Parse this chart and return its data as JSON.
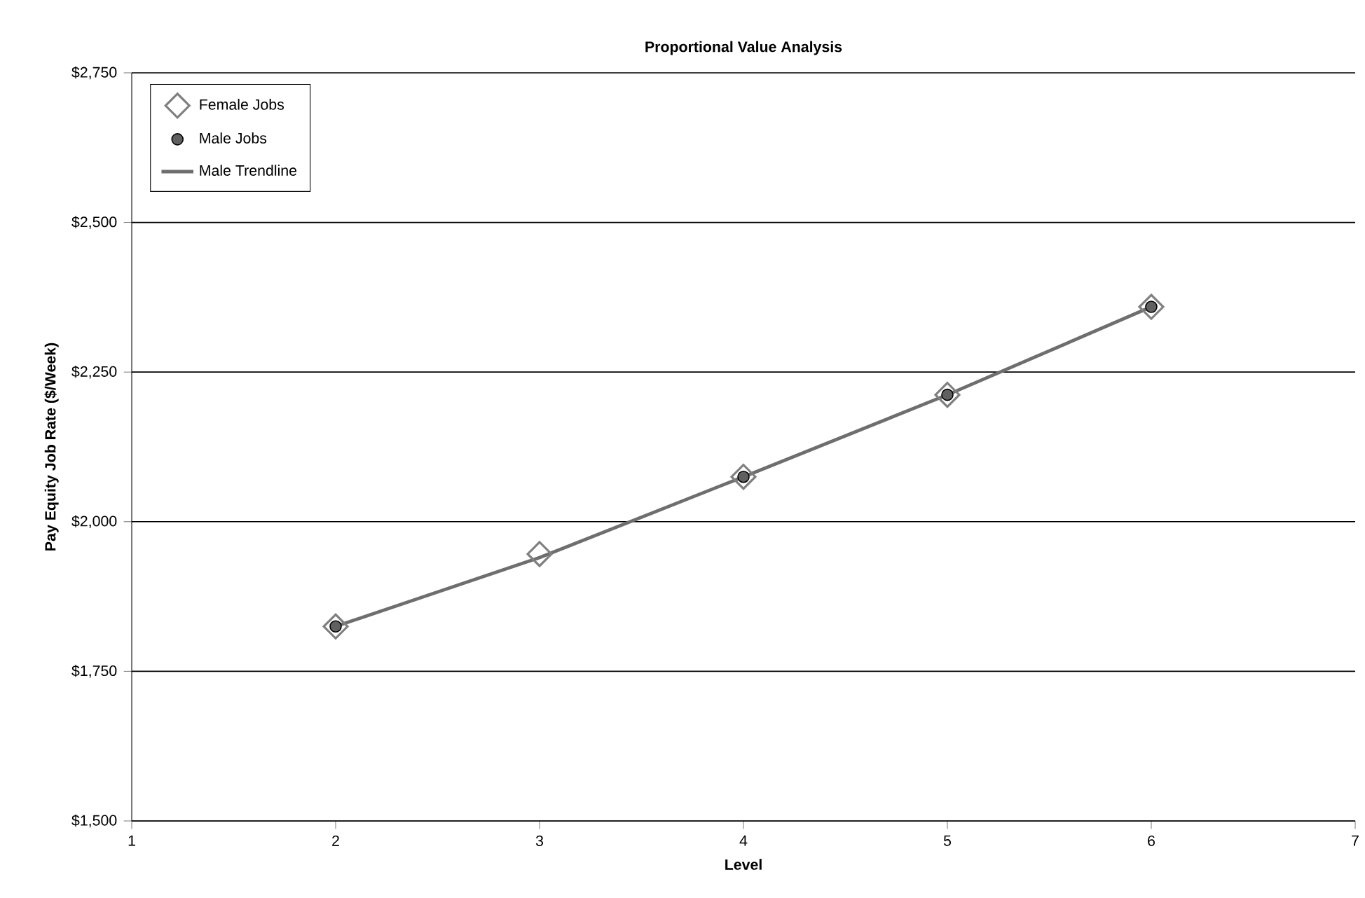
{
  "chart_data": {
    "type": "scatter",
    "title": "Proportional Value Analysis",
    "xlabel": "Level",
    "ylabel": "Pay Equity Job Rate ($/Week)",
    "xlim": [
      1,
      7
    ],
    "xticks": [
      1,
      2,
      3,
      4,
      5,
      6,
      7
    ],
    "ylim": [
      1500,
      2750
    ],
    "yticks": [
      {
        "value": 1500,
        "label": "$1,500"
      },
      {
        "value": 1750,
        "label": "$1,750"
      },
      {
        "value": 2000,
        "label": "$2,000"
      },
      {
        "value": 2250,
        "label": "$2,250"
      },
      {
        "value": 2500,
        "label": "$2,500"
      },
      {
        "value": 2750,
        "label": "$2,750"
      }
    ],
    "grid": "y",
    "legend": "top left",
    "series": [
      {
        "name": "Female Jobs",
        "marker": "diamond",
        "color": "#808080",
        "x": [
          2,
          3,
          4,
          5,
          6
        ],
        "values": [
          1825,
          1946,
          2075,
          2212,
          2359
        ]
      },
      {
        "name": "Male Jobs",
        "marker": "circle",
        "color": "#606060",
        "x": [
          2,
          4,
          5,
          6
        ],
        "values": [
          1825,
          2075,
          2212,
          2359
        ]
      },
      {
        "name": "Male Trendline",
        "type": "line",
        "line_style": "solid",
        "color": "#6e6e6e",
        "x": [
          2,
          3,
          4,
          5,
          6
        ],
        "values": [
          1825,
          1940,
          2075,
          2212,
          2359
        ]
      }
    ]
  }
}
